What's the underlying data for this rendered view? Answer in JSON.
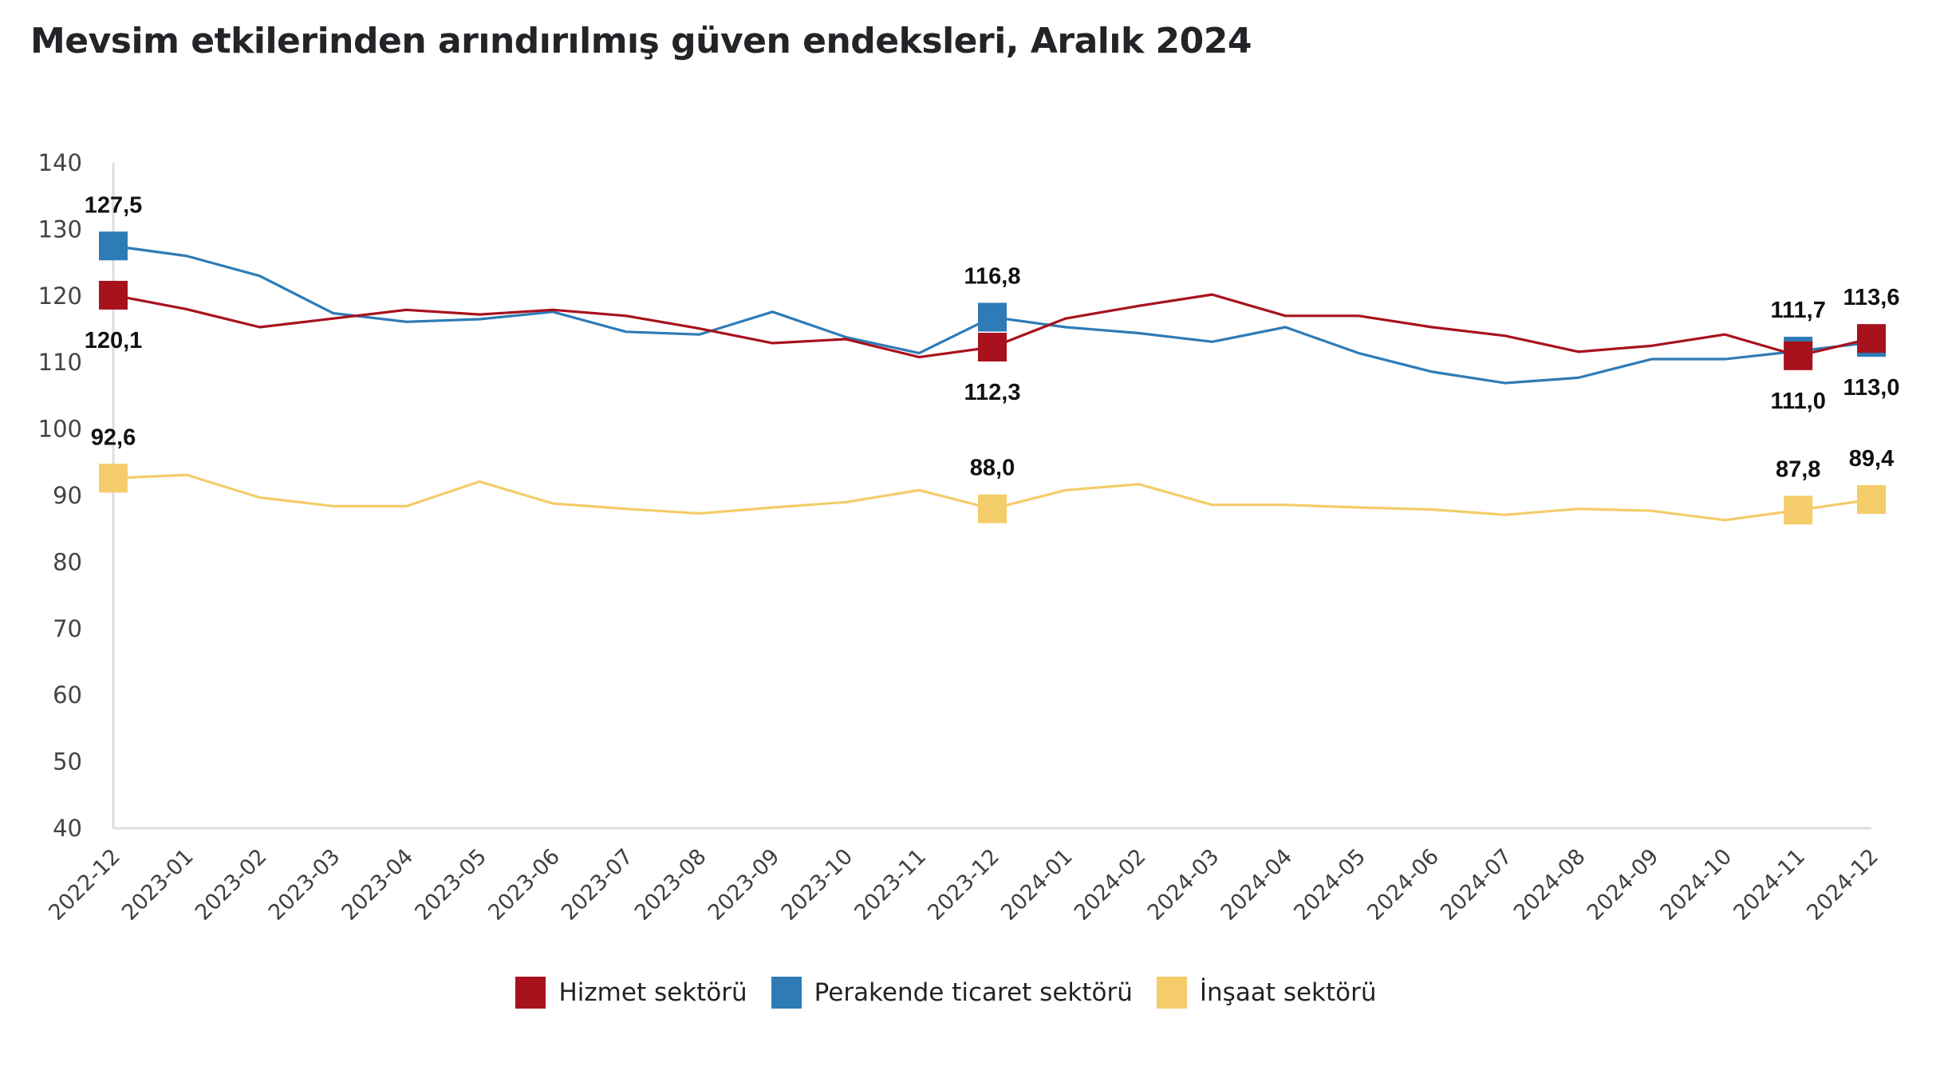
{
  "title": "Mevsim etkilerinden arındırılmış güven endeksleri, Aralık 2024",
  "legend": [
    {
      "label": "Hizmet sektörü",
      "color": "#A8121C",
      "icon": "square-swatch"
    },
    {
      "label": "Perakende ticaret sektörü",
      "color": "#2E7BB7",
      "icon": "square-swatch"
    },
    {
      "label": "İnşaat sektörü",
      "color": "#F5CC6A",
      "icon": "square-swatch"
    }
  ],
  "chart_data": {
    "type": "line",
    "title": "Mevsim etkilerinden arındırılmış güven endeksleri, Aralık 2024",
    "xlabel": "",
    "ylabel": "",
    "ylim": [
      40,
      140
    ],
    "yticks": [
      "140",
      "130",
      "120",
      "110",
      "100",
      "90",
      "80",
      "70",
      "60",
      "50",
      "40"
    ],
    "ytick_values": [
      140,
      130,
      120,
      110,
      100,
      90,
      80,
      70,
      60,
      50,
      40
    ],
    "grid": false,
    "legend_position": "bottom-center",
    "x": [
      "2022-12",
      "2023-01",
      "2023-02",
      "2023-03",
      "2023-04",
      "2023-05",
      "2023-06",
      "2023-07",
      "2023-08",
      "2023-09",
      "2023-10",
      "2023-11",
      "2023-12",
      "2024-01",
      "2024-02",
      "2024-03",
      "2024-04",
      "2024-05",
      "2024-06",
      "2024-07",
      "2024-08",
      "2024-09",
      "2024-10",
      "2024-11",
      "2024-12"
    ],
    "series": [
      {
        "name": "Hizmet sektörü",
        "color": "#A8121C",
        "values": [
          120.1,
          118.0,
          115.3,
          116.6,
          117.9,
          117.2,
          117.9,
          117.0,
          115.1,
          112.9,
          113.5,
          110.8,
          112.3,
          116.6,
          118.5,
          120.2,
          117.0,
          117.0,
          115.3,
          114.0,
          111.6,
          112.5,
          114.2,
          111.0,
          113.6
        ],
        "markers": [
          {
            "index": 0,
            "label": "120,1",
            "position": "below"
          },
          {
            "index": 12,
            "label": "112,3",
            "position": "below"
          },
          {
            "index": 23,
            "label": "111,0",
            "position": "below"
          },
          {
            "index": 24,
            "label": "113,6",
            "position": "above"
          }
        ]
      },
      {
        "name": "Perakende ticaret sektörü",
        "color": "#2E7BB7",
        "values": [
          127.5,
          126.0,
          123.0,
          117.4,
          116.1,
          116.5,
          117.6,
          114.6,
          114.2,
          117.6,
          113.8,
          111.4,
          116.8,
          115.3,
          114.4,
          113.1,
          115.3,
          111.4,
          108.6,
          106.9,
          107.7,
          110.5,
          110.5,
          111.7,
          113.0
        ],
        "markers": [
          {
            "index": 0,
            "label": "127,5",
            "position": "above"
          },
          {
            "index": 12,
            "label": "116,8",
            "position": "above"
          },
          {
            "index": 23,
            "label": "111,7",
            "position": "above"
          },
          {
            "index": 24,
            "label": "113,0",
            "position": "below"
          }
        ]
      },
      {
        "name": "İnşaat sektörü",
        "color": "#F5CC6A",
        "values": [
          92.6,
          93.1,
          89.7,
          88.4,
          88.4,
          92.1,
          88.8,
          88.0,
          87.3,
          88.2,
          89.0,
          90.8,
          88.0,
          90.8,
          91.7,
          88.6,
          88.6,
          88.2,
          87.9,
          87.1,
          88.0,
          87.7,
          86.3,
          87.8,
          89.4
        ],
        "markers": [
          {
            "index": 0,
            "label": "92,6",
            "position": "above"
          },
          {
            "index": 12,
            "label": "88,0",
            "position": "above"
          },
          {
            "index": 23,
            "label": "87,8",
            "position": "above"
          },
          {
            "index": 24,
            "label": "89,4",
            "position": "above"
          }
        ]
      }
    ]
  }
}
